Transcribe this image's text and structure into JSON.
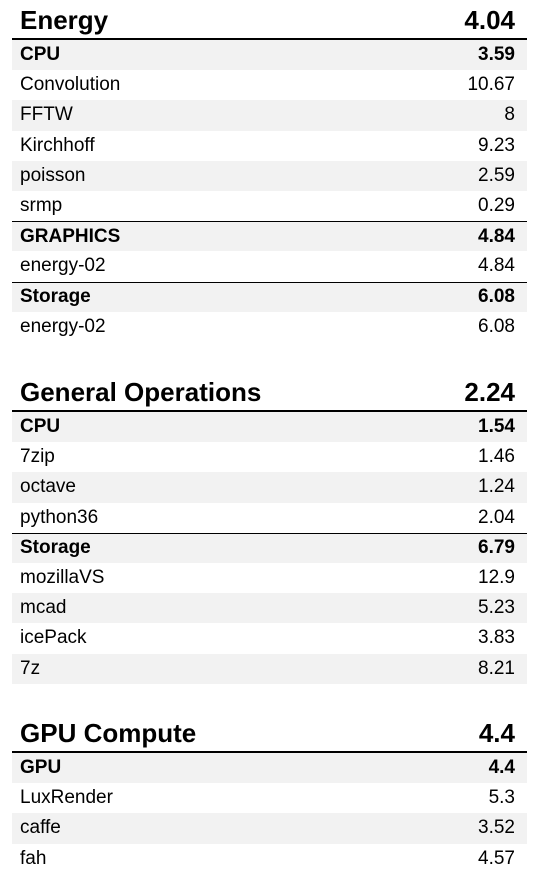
{
  "sections": [
    {
      "title": "Energy",
      "score": "4.04",
      "groups": [
        {
          "name": "CPU",
          "score": "3.59",
          "items": [
            {
              "name": "Convolution",
              "value": "10.67"
            },
            {
              "name": "FFTW",
              "value": "8"
            },
            {
              "name": "Kirchhoff",
              "value": "9.23"
            },
            {
              "name": "poisson",
              "value": "2.59"
            },
            {
              "name": "srmp",
              "value": "0.29"
            }
          ]
        },
        {
          "name": "GRAPHICS",
          "score": "4.84",
          "items": [
            {
              "name": "energy-02",
              "value": "4.84"
            }
          ]
        },
        {
          "name": "Storage",
          "score": "6.08",
          "items": [
            {
              "name": "energy-02",
              "value": "6.08"
            }
          ]
        }
      ]
    },
    {
      "title": "General Operations",
      "score": "2.24",
      "groups": [
        {
          "name": "CPU",
          "score": "1.54",
          "items": [
            {
              "name": "7zip",
              "value": "1.46"
            },
            {
              "name": "octave",
              "value": "1.24"
            },
            {
              "name": "python36",
              "value": "2.04"
            }
          ]
        },
        {
          "name": "Storage",
          "score": "6.79",
          "items": [
            {
              "name": "mozillaVS",
              "value": "12.9"
            },
            {
              "name": "mcad",
              "value": "5.23"
            },
            {
              "name": "icePack",
              "value": "3.83"
            },
            {
              "name": "7z",
              "value": "8.21"
            }
          ]
        }
      ]
    },
    {
      "title": "GPU Compute",
      "score": "4.4",
      "groups": [
        {
          "name": "GPU",
          "score": "4.4",
          "items": [
            {
              "name": "LuxRender",
              "value": "5.3"
            },
            {
              "name": "caffe",
              "value": "3.52"
            },
            {
              "name": "fah",
              "value": "4.57"
            }
          ]
        }
      ]
    }
  ]
}
